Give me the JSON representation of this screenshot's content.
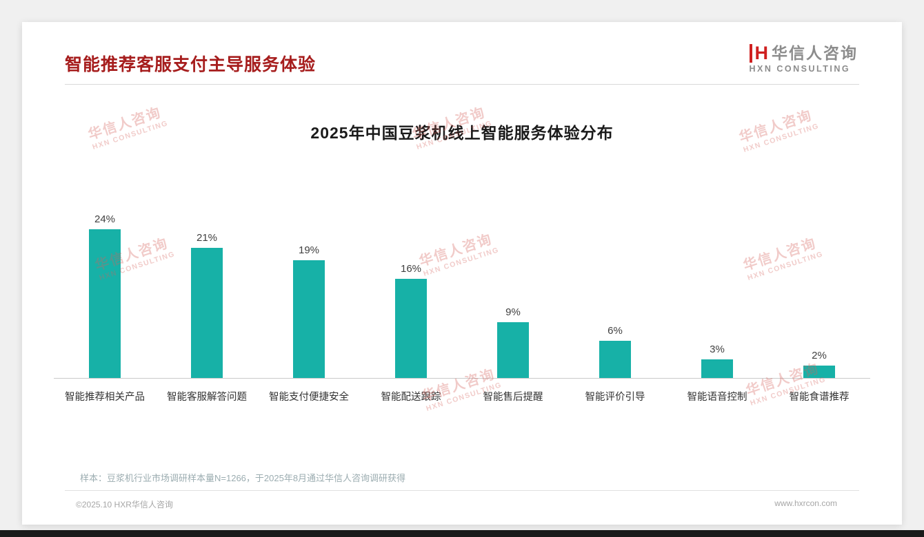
{
  "header": {
    "title": "智能推荐客服支付主导服务体验",
    "logo": {
      "mark": "H",
      "name": "华信人咨询",
      "subtitle": "HXN CONSULTING"
    }
  },
  "chart_data": {
    "type": "bar",
    "title": "2025年中国豆浆机线上智能服务体验分布",
    "categories": [
      "智能推荐相关产品",
      "智能客服解答问题",
      "智能支付便捷安全",
      "智能配送跟踪",
      "智能售后提醒",
      "智能评价引导",
      "智能语音控制",
      "智能食谱推荐"
    ],
    "values": [
      24,
      21,
      19,
      16,
      9,
      6,
      3,
      2
    ],
    "value_labels": [
      "24%",
      "21%",
      "19%",
      "16%",
      "9%",
      "6%",
      "3%",
      "2%"
    ],
    "unit": "%",
    "bar_color": "#17b1a7",
    "ylim": [
      0,
      26
    ],
    "grid": false,
    "legend": false
  },
  "watermark": {
    "line1": "华信人咨询",
    "line2": "HXN CONSULTING"
  },
  "footer": {
    "note": "样本：豆浆机行业市场调研样本量N=1266，于2025年8月通过华信人咨询调研获得",
    "copyright": "©2025.10 HXR华信人咨询",
    "website": "www.hxrcon.com"
  }
}
